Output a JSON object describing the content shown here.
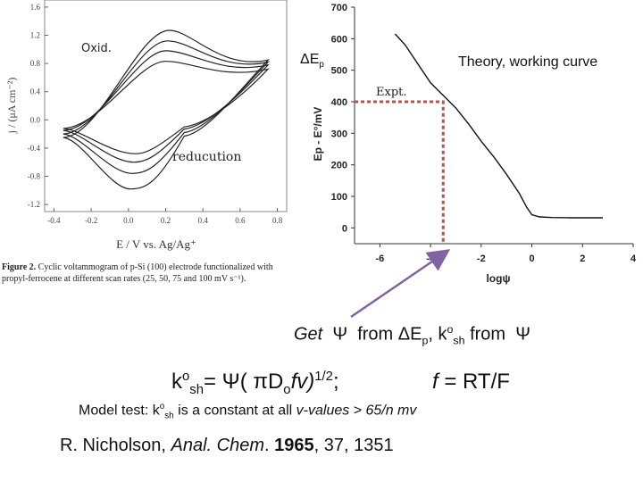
{
  "chart_data": [
    {
      "type": "line",
      "title": "",
      "xlabel": "E / V vs. Ag/Ag⁺",
      "ylabel": "j / (μA cm⁻²)",
      "xlim": [
        -0.45,
        0.85
      ],
      "ylim": [
        -1.3,
        1.7
      ],
      "xticks": [
        -0.4,
        -0.2,
        0.0,
        0.2,
        0.4,
        0.6,
        0.8
      ],
      "xtick_labels": [
        "-0.4",
        "-0.2",
        "0.0",
        "0.2",
        "0.4",
        "0.6",
        "0.8"
      ],
      "yticks": [
        -1.2,
        -0.8,
        -0.4,
        0.0,
        0.4,
        0.8,
        1.2,
        1.6
      ],
      "ytick_labels": [
        "-1.2",
        "-0.8",
        "-0.4",
        "0.0",
        "0.4",
        "0.8",
        "1.2",
        "1.6"
      ],
      "annotations": [
        {
          "text": "Oxid.",
          "x": -0.33,
          "y": 1.1
        },
        {
          "text": "reducution",
          "x": 0.07,
          "y": -0.67
        }
      ],
      "series": [
        {
          "scan_rate": "25",
          "anodic_peak": [
            0.2,
            0.83
          ],
          "cathodic_peak": [
            0.04,
            -0.48
          ],
          "start": [
            -0.35,
            -0.12
          ],
          "vertex": [
            0.75,
            0.72
          ]
        },
        {
          "scan_rate": "50",
          "anodic_peak": [
            0.2,
            0.98
          ],
          "cathodic_peak": [
            0.03,
            -0.6
          ],
          "start": [
            -0.35,
            -0.15
          ],
          "vertex": [
            0.75,
            0.78
          ]
        },
        {
          "scan_rate": "75",
          "anodic_peak": [
            0.21,
            1.12
          ],
          "cathodic_peak": [
            0.02,
            -0.76
          ],
          "start": [
            -0.35,
            -0.2
          ],
          "vertex": [
            0.75,
            0.82
          ]
        },
        {
          "scan_rate": "100",
          "anodic_peak": [
            0.22,
            1.27
          ],
          "cathodic_peak": [
            0.01,
            -0.98
          ],
          "start": [
            -0.35,
            -0.25
          ],
          "vertex": [
            0.75,
            0.85
          ]
        }
      ]
    },
    {
      "type": "line",
      "title": "",
      "xlabel": "logψ",
      "ylabel": "Ep - E°/mV",
      "xlim": [
        -7,
        4
      ],
      "ylim": [
        -50,
        700
      ],
      "xticks": [
        -6,
        -4,
        -2,
        0,
        2,
        4
      ],
      "xtick_labels": [
        "-6",
        "-4",
        "-2",
        "0",
        "2",
        "4"
      ],
      "yticks": [
        0,
        100,
        200,
        300,
        400,
        500,
        600,
        700
      ],
      "ytick_labels": [
        "0",
        "100",
        "200",
        "300",
        "400",
        "500",
        "600",
        "700"
      ],
      "series": [
        {
          "name": "Theory, working curve",
          "x": [
            -5.4,
            -5.0,
            -4.5,
            -4.0,
            -3.5,
            -3.0,
            -2.5,
            -2.0,
            -1.5,
            -1.0,
            -0.5,
            -0.2,
            0.0,
            0.3,
            0.8,
            1.5,
            2.0,
            2.8
          ],
          "y": [
            615,
            580,
            520,
            460,
            420,
            380,
            330,
            275,
            225,
            170,
            110,
            65,
            42,
            35,
            33,
            32,
            32,
            32
          ]
        }
      ],
      "reading": {
        "label": "Expt.",
        "x": -3.5,
        "y": 400
      }
    }
  ],
  "labels": {
    "oxid": "Oxid.",
    "reduction": "reducution",
    "delta_ep": "ΔE",
    "delta_ep_sub": "p",
    "theory": "Theory, working curve",
    "expt": "Expt."
  },
  "caption": {
    "bold": "Figure 2.",
    "text": " Cyclic voltammogram of p-Si (100) electrode functionalized with propyl-ferrocene at different scan rates (25, 50, 75 and 100 mV s⁻¹)."
  },
  "text_lines": {
    "get_line": {
      "get": "Get",
      "psi1": "Ψ",
      "from1": "from ΔE",
      "sub_p": "p",
      "comma_k": ", k",
      "sup_o": "o",
      "sub_sh": "sh",
      "from2": " from",
      "psi2": "Ψ"
    },
    "equation": {
      "k": "k",
      "sup_o": "o",
      "sub_sh": "sh",
      "eq": "= Ψ( πD",
      "sub_o": "o",
      "fv": "fv)",
      "sup_half": "1/2",
      "semi": ";",
      "f_eq": "f",
      "rt_f": " = RT/F"
    },
    "model_test": {
      "prefix": "Model test: k",
      "sup_o": "o",
      "sub_sh": "sh",
      "middle": " is a constant at all ",
      "v_values": "v-values > 65/n mv"
    },
    "reference": {
      "author": "R. Nicholson, ",
      "journal": "Anal. Chem",
      "dot": ". ",
      "year": "1965",
      "rest": ", 37, 1351"
    }
  }
}
